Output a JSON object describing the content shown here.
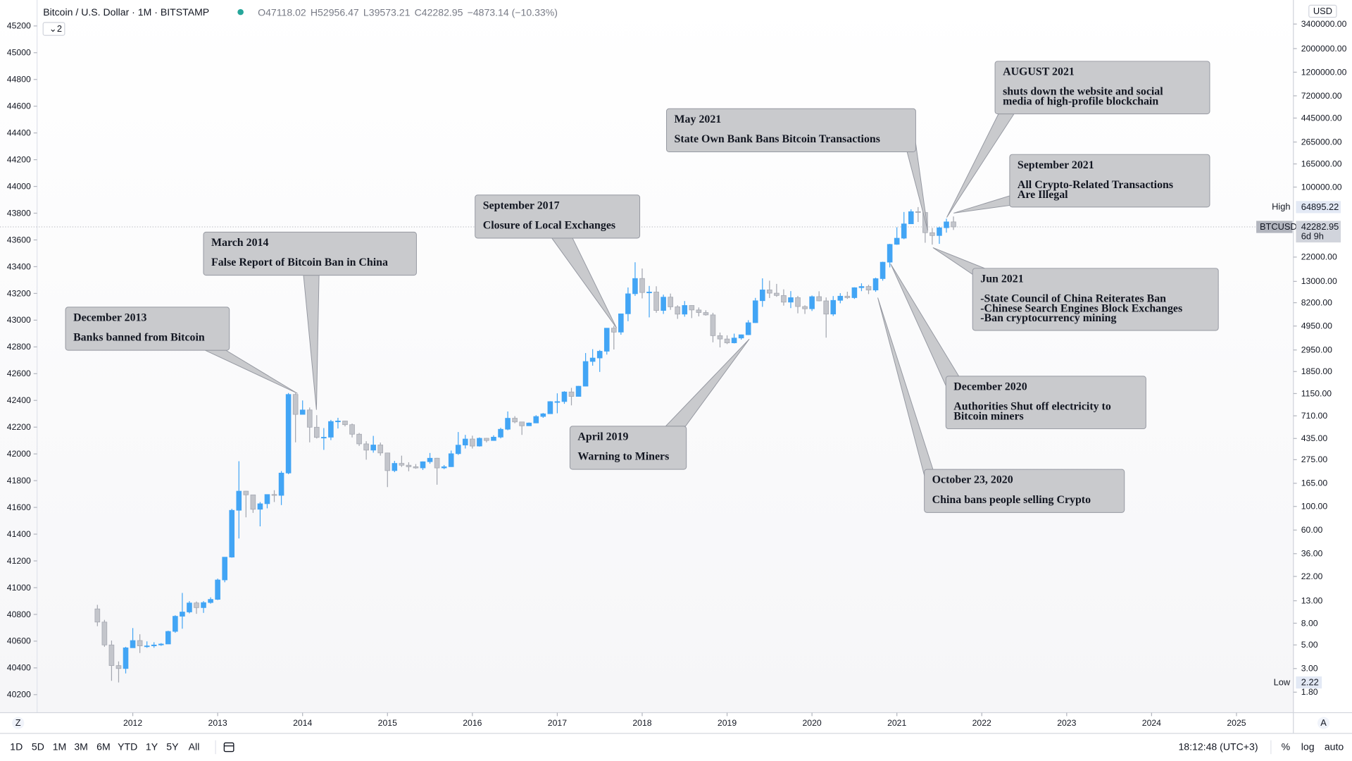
{
  "chart_data": {
    "type": "candlestick",
    "title": "Bitcoin / U.S. Dollar · 1M · BITSTAMP",
    "indicator_count": 2,
    "ohlc_letters": [
      "O",
      "H",
      "L",
      "C"
    ],
    "change_label": "−4873.14 (−10.33%)",
    "currency": "USD",
    "high_label": "High",
    "low_label": "Low",
    "symbol": "BTCUSD",
    "countdown": "6d 9h",
    "log": true,
    "up_color": "#42a5f5",
    "down_color": "#c3c5cb",
    "xlim": [
      2010.436,
      2025.67
    ],
    "xticks": [
      2012,
      2013,
      2014,
      2015,
      2016,
      2017,
      2018,
      2019,
      2020,
      2021,
      2022,
      2023,
      2024,
      2025
    ],
    "ylim": [
      1.155,
      5720000
    ],
    "yticks": [
      {
        "value": 3400000,
        "label": "3400000.00"
      },
      {
        "value": 2000000,
        "label": "2000000.00"
      },
      {
        "value": 1200000,
        "label": "1200000.00"
      },
      {
        "value": 720000,
        "label": "720000.00"
      },
      {
        "value": 445000,
        "label": "445000.00"
      },
      {
        "value": 265000,
        "label": "265000.00"
      },
      {
        "value": 165000,
        "label": "165000.00"
      },
      {
        "value": 100000,
        "label": "100000.00"
      },
      {
        "value": 22000,
        "label": "22000.00"
      },
      {
        "value": 13000,
        "label": "13000.00"
      },
      {
        "value": 8200,
        "label": "8200.00"
      },
      {
        "value": 4950,
        "label": "4950.00"
      },
      {
        "value": 2950,
        "label": "2950.00"
      },
      {
        "value": 1850,
        "label": "1850.00"
      },
      {
        "value": 1150,
        "label": "1150.00"
      },
      {
        "value": 710,
        "label": "710.00"
      },
      {
        "value": 435,
        "label": "435.00"
      },
      {
        "value": 275,
        "label": "275.00"
      },
      {
        "value": 165,
        "label": "165.00"
      },
      {
        "value": 100,
        "label": "100.00"
      },
      {
        "value": 60,
        "label": "60.00"
      },
      {
        "value": 36,
        "label": "36.00"
      },
      {
        "value": 22,
        "label": "22.00"
      },
      {
        "value": 13,
        "label": "13.00"
      },
      {
        "value": 8,
        "label": "8.00"
      },
      {
        "value": 5,
        "label": "5.00"
      },
      {
        "value": 3,
        "label": "3.00"
      },
      {
        "value": 1.8,
        "label": "1.80"
      }
    ],
    "y2lim": [
      40065,
      45394
    ],
    "y2ticks": [
      40200,
      40400,
      40600,
      40800,
      41000,
      41200,
      41400,
      41600,
      41800,
      42000,
      42200,
      42400,
      42600,
      42800,
      43000,
      43200,
      43400,
      43600,
      43800,
      44000,
      44200,
      44400,
      44600,
      44800,
      45000,
      45200
    ],
    "x": [
      "2011-08",
      "2011-09",
      "2011-10",
      "2011-11",
      "2011-12",
      "2012-01",
      "2012-02",
      "2012-03",
      "2012-04",
      "2012-05",
      "2012-06",
      "2012-07",
      "2012-08",
      "2012-09",
      "2012-10",
      "2012-11",
      "2012-12",
      "2013-01",
      "2013-02",
      "2013-03",
      "2013-04",
      "2013-05",
      "2013-06",
      "2013-07",
      "2013-08",
      "2013-09",
      "2013-10",
      "2013-11",
      "2013-12",
      "2014-01",
      "2014-02",
      "2014-03",
      "2014-04",
      "2014-05",
      "2014-06",
      "2014-07",
      "2014-08",
      "2014-09",
      "2014-10",
      "2014-11",
      "2014-12",
      "2015-01",
      "2015-02",
      "2015-03",
      "2015-04",
      "2015-05",
      "2015-06",
      "2015-07",
      "2015-08",
      "2015-09",
      "2015-10",
      "2015-11",
      "2015-12",
      "2016-01",
      "2016-02",
      "2016-03",
      "2016-04",
      "2016-05",
      "2016-06",
      "2016-07",
      "2016-08",
      "2016-09",
      "2016-10",
      "2016-11",
      "2016-12",
      "2017-01",
      "2017-02",
      "2017-03",
      "2017-04",
      "2017-05",
      "2017-06",
      "2017-07",
      "2017-08",
      "2017-09",
      "2017-10",
      "2017-11",
      "2017-12",
      "2018-01",
      "2018-02",
      "2018-03",
      "2018-04",
      "2018-05",
      "2018-06",
      "2018-07",
      "2018-08",
      "2018-09",
      "2018-10",
      "2018-11",
      "2018-12",
      "2019-01",
      "2019-02",
      "2019-03",
      "2019-04",
      "2019-05",
      "2019-06",
      "2019-07",
      "2019-08",
      "2019-09",
      "2019-10",
      "2019-11",
      "2019-12",
      "2020-01",
      "2020-02",
      "2020-03",
      "2020-04",
      "2020-05",
      "2020-06",
      "2020-07",
      "2020-08",
      "2020-09",
      "2020-10",
      "2020-11",
      "2020-12",
      "2021-01",
      "2021-02",
      "2021-03",
      "2021-04",
      "2021-05",
      "2021-06",
      "2021-07",
      "2021-08",
      "2021-09"
    ],
    "series": [
      {
        "name": "BTCUSD",
        "open": [
          10.9,
          8.2,
          5.0,
          3.2,
          3.0,
          4.7,
          5.5,
          4.9,
          4.9,
          5.0,
          5.1,
          6.7,
          9.3,
          10.2,
          12.4,
          11.2,
          12.5,
          13.4,
          20.4,
          33.4,
          92,
          139.2,
          128.5,
          94,
          106,
          129.5,
          127,
          206,
          1128,
          732,
          806,
          555,
          445,
          447,
          628,
          635,
          586,
          477,
          387,
          338,
          378,
          318,
          217,
          254,
          244,
          236,
          230,
          263,
          284,
          230,
          236,
          313,
          377,
          430,
          369,
          437,
          416,
          448,
          531,
          674,
          622,
          572,
          608,
          700,
          742,
          966,
          966,
          1190,
          1080,
          1348,
          2300,
          2480,
          2870,
          4730,
          4340,
          6450,
          9950,
          13850,
          10220,
          10330,
          6930,
          9250,
          7500,
          6400,
          7730,
          7010,
          6630,
          6300,
          4020,
          3740,
          3440,
          3820,
          4100,
          5320,
          8560,
          10820,
          10080,
          9590,
          8300,
          9150,
          7550,
          7190,
          9350,
          8530,
          6410,
          8630,
          9450,
          9140,
          11350,
          11650,
          10780,
          13800,
          19700,
          28980,
          33110,
          45140,
          58780,
          57720,
          37300,
          35040,
          41490,
          47118.02
        ],
        "high": [
          11.9,
          8.6,
          5.5,
          3.5,
          4.8,
          7.2,
          6.3,
          5.4,
          5.3,
          5.2,
          6.8,
          9.5,
          15.4,
          12.9,
          12.8,
          12.9,
          14.0,
          21,
          33.5,
          95,
          266,
          140,
          129,
          110,
          130,
          142,
          215,
          1163,
          1160,
          990,
          850,
          720,
          545,
          650,
          680,
          638,
          600,
          490,
          410,
          460,
          398,
          320,
          268,
          300,
          260,
          250,
          265,
          318,
          286,
          245,
          335,
          500,
          470,
          462,
          445,
          440,
          466,
          548,
          780,
          705,
          624,
          615,
          720,
          755,
          975,
          1155,
          1210,
          1300,
          1355,
          2760,
          3000,
          2950,
          4740,
          4980,
          6470,
          11400,
          19666,
          17170,
          11780,
          11700,
          9760,
          9990,
          7760,
          8500,
          7760,
          7400,
          6970,
          6590,
          4300,
          4050,
          4200,
          4120,
          5620,
          9100,
          13880,
          13200,
          12320,
          10950,
          10540,
          9500,
          7750,
          9580,
          10500,
          9190,
          9470,
          10080,
          10400,
          11450,
          12470,
          12080,
          14100,
          19900,
          29300,
          41950,
          58350,
          61790,
          64895.22,
          59590,
          41300,
          42600,
          50500,
          52956.47
        ],
        "low": [
          7.5,
          4.8,
          2.3,
          2.22,
          2.7,
          4.7,
          4.2,
          4.7,
          4.7,
          4.9,
          5.1,
          6.5,
          7.1,
          9.9,
          9.8,
          10.0,
          12.2,
          13.2,
          19.4,
          33,
          50,
          79,
          87,
          65,
          96,
          110,
          103,
          201,
          400,
          730,
          400,
          435,
          340,
          420,
          540,
          565,
          445,
          370,
          275,
          320,
          300,
          152,
          210,
          235,
          214,
          226,
          220,
          252,
          160,
          224,
          235,
          305,
          350,
          350,
          365,
          400,
          415,
          436,
          520,
          605,
          470,
          570,
          605,
          680,
          740,
          750,
          920,
          890,
          1080,
          1345,
          2100,
          1835,
          2670,
          2980,
          4100,
          5500,
          9500,
          9000,
          5970,
          6600,
          6430,
          7030,
          5780,
          6060,
          5880,
          6100,
          6200,
          3480,
          3120,
          3350,
          3400,
          3690,
          4070,
          5300,
          7500,
          9070,
          9320,
          7700,
          7300,
          6520,
          6430,
          6860,
          8450,
          3850,
          6150,
          8100,
          8900,
          8900,
          10530,
          9880,
          10380,
          13200,
          17600,
          28700,
          32400,
          45000,
          47000,
          30000,
          28800,
          29300,
          37330,
          39573.21
        ],
        "close": [
          8.2,
          5.0,
          3.2,
          3.0,
          4.7,
          5.5,
          4.9,
          4.9,
          5.0,
          5.1,
          6.7,
          9.3,
          10.2,
          12.4,
          11.2,
          12.5,
          13.4,
          20.4,
          33.4,
          92,
          139.2,
          128.5,
          94,
          106,
          129.5,
          127,
          206,
          1128,
          732,
          806,
          555,
          445,
          447,
          628,
          635,
          586,
          477,
          387,
          338,
          378,
          318,
          217,
          254,
          244,
          236,
          230,
          263,
          284,
          230,
          236,
          313,
          377,
          430,
          369,
          437,
          416,
          448,
          531,
          674,
          622,
          572,
          608,
          700,
          742,
          966,
          966,
          1190,
          1080,
          1348,
          2300,
          2480,
          2870,
          4730,
          4340,
          6450,
          9950,
          13850,
          10220,
          10330,
          6930,
          9250,
          7500,
          6400,
          7730,
          7010,
          6630,
          6300,
          4020,
          3740,
          3440,
          3820,
          4100,
          5320,
          8560,
          10820,
          10080,
          9590,
          8300,
          9150,
          7550,
          7190,
          9350,
          8530,
          6410,
          8630,
          9450,
          9140,
          11350,
          11650,
          10780,
          13800,
          19700,
          28980,
          33110,
          45140,
          58780,
          57720,
          37300,
          35040,
          41490,
          47156.09,
          42282.95
        ]
      }
    ],
    "annotations": [
      {
        "title": "December 2013",
        "lines": [
          "Banks banned from Bitcoin"
        ]
      },
      {
        "title": "March 2014",
        "lines": [
          "False Report of Bitcoin Ban in China"
        ]
      },
      {
        "title": "September 2017",
        "lines": [
          "Closure of Local Exchanges"
        ]
      },
      {
        "title": "April 2019",
        "lines": [
          "Warning to Miners"
        ]
      },
      {
        "title": "May 2021",
        "lines": [
          "State Own Bank Bans Bitcoin Transactions"
        ]
      },
      {
        "title": "AUGUST 2021",
        "lines": [
          "shuts down the website and social",
          "media of high-profile blockchain"
        ]
      },
      {
        "title": "September 2021",
        "lines": [
          "All Crypto-Related Transactions",
          "Are Illegal"
        ]
      },
      {
        "title": "Jun 2021",
        "lines": [
          "-State Council of China Reiterates Ban",
          "-Chinese Search Engines Block Exchanges",
          "-Ban cryptocurrency mining"
        ]
      },
      {
        "title": "December 2020",
        "lines": [
          "Authorities Shut off electricity to",
          "Bitcoin miners"
        ]
      },
      {
        "title": "October 23, 2020",
        "lines": [
          "China bans people selling Crypto"
        ]
      }
    ]
  },
  "toolbar": {
    "ranges": [
      "1D",
      "5D",
      "1M",
      "3M",
      "6M",
      "YTD",
      "1Y",
      "5Y",
      "All"
    ],
    "clock": "18:12:48 (UTC+3)",
    "percent": "%",
    "log": "log",
    "auto": "auto",
    "left_button": "Z",
    "right_button": "A"
  }
}
